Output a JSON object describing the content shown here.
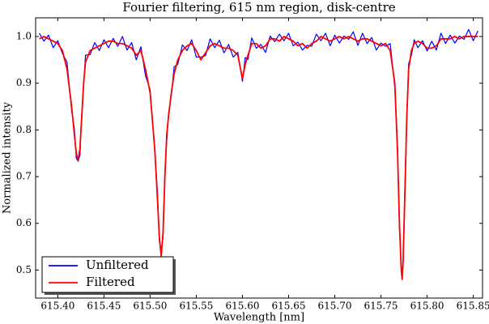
{
  "chart_data": {
    "type": "line",
    "title": "Fourier filtering, 615 nm region, disk-centre",
    "xlabel": "Wavelength [nm]",
    "ylabel": "Normalized intensity",
    "x": [
      615.38,
      615.385,
      615.39,
      615.395,
      615.4,
      615.405,
      615.41,
      615.415,
      615.418,
      615.42,
      615.422,
      615.424,
      615.426,
      615.428,
      615.43,
      615.435,
      615.44,
      615.445,
      615.45,
      615.455,
      615.46,
      615.465,
      615.47,
      615.475,
      615.48,
      615.485,
      615.49,
      615.495,
      615.5,
      615.505,
      615.508,
      615.51,
      615.512,
      615.514,
      615.516,
      615.518,
      615.52,
      615.523,
      615.526,
      615.53,
      615.535,
      615.54,
      615.545,
      615.55,
      615.555,
      615.56,
      615.565,
      615.57,
      615.575,
      615.58,
      615.585,
      615.59,
      615.595,
      615.6,
      615.603,
      615.606,
      615.61,
      615.615,
      615.62,
      615.625,
      615.63,
      615.635,
      615.64,
      615.645,
      615.65,
      615.655,
      615.66,
      615.665,
      615.67,
      615.675,
      615.68,
      615.685,
      615.69,
      615.695,
      615.7,
      615.705,
      615.71,
      615.715,
      615.72,
      615.725,
      615.73,
      615.735,
      615.74,
      615.745,
      615.75,
      615.755,
      615.76,
      615.765,
      615.768,
      615.77,
      615.772,
      615.773,
      615.774,
      615.776,
      615.778,
      615.78,
      615.783,
      615.786,
      615.79,
      615.795,
      615.8,
      615.805,
      615.81,
      615.815,
      615.82,
      615.825,
      615.83,
      615.835,
      615.84,
      615.845,
      615.85,
      615.855
    ],
    "series": [
      {
        "name": "Unfiltered",
        "color": "#0000ff",
        "values": [
          1.007,
          0.99,
          1.003,
          0.976,
          0.991,
          0.964,
          0.945,
          0.841,
          0.802,
          0.74,
          0.733,
          0.746,
          0.836,
          0.894,
          0.96,
          0.961,
          0.987,
          0.97,
          0.993,
          0.976,
          0.996,
          0.979,
          1.0,
          0.971,
          0.987,
          0.95,
          0.978,
          0.916,
          0.886,
          0.754,
          0.665,
          0.561,
          0.542,
          0.57,
          0.708,
          0.776,
          0.836,
          0.874,
          0.935,
          0.941,
          0.982,
          0.97,
          0.993,
          0.956,
          0.956,
          0.959,
          0.995,
          0.976,
          0.992,
          0.965,
          0.983,
          0.956,
          0.966,
          0.904,
          0.955,
          0.951,
          0.997,
          0.975,
          0.983,
          0.966,
          1.001,
          0.989,
          1.005,
          0.991,
          1.007,
          0.98,
          0.988,
          0.971,
          0.981,
          0.979,
          1.005,
          0.991,
          1.007,
          0.98,
          1.003,
          0.986,
          1.001,
          0.994,
          1.01,
          0.981,
          1.007,
          0.985,
          0.998,
          0.971,
          0.986,
          0.979,
          0.985,
          0.891,
          0.762,
          0.59,
          0.508,
          0.486,
          0.514,
          0.685,
          0.821,
          0.942,
          0.96,
          0.993,
          0.976,
          0.991,
          0.969,
          0.99,
          0.971,
          1.007,
          0.985,
          1.003,
          0.986,
          1.001,
          0.994,
          1.015,
          0.991,
          1.012
        ]
      },
      {
        "name": "Filtered",
        "color": "#ff0000",
        "values": [
          0.995,
          1.0,
          0.995,
          0.99,
          0.985,
          0.97,
          0.93,
          0.85,
          0.79,
          0.75,
          0.735,
          0.76,
          0.83,
          0.9,
          0.945,
          0.97,
          0.975,
          0.98,
          0.985,
          0.99,
          0.99,
          0.985,
          0.985,
          0.98,
          0.975,
          0.96,
          0.97,
          0.93,
          0.88,
          0.76,
          0.65,
          0.57,
          0.53,
          0.58,
          0.7,
          0.79,
          0.83,
          0.88,
          0.92,
          0.95,
          0.97,
          0.98,
          0.985,
          0.97,
          0.95,
          0.965,
          0.98,
          0.985,
          0.98,
          0.975,
          0.975,
          0.97,
          0.96,
          0.91,
          0.94,
          0.96,
          0.985,
          0.985,
          0.975,
          0.98,
          0.995,
          0.995,
          0.99,
          1.0,
          0.995,
          0.99,
          0.98,
          0.985,
          0.975,
          0.985,
          0.99,
          1.0,
          0.995,
          0.99,
          0.995,
          1.0,
          0.995,
          1.0,
          0.995,
          0.99,
          0.995,
          0.995,
          0.99,
          0.985,
          0.98,
          0.985,
          0.97,
          0.9,
          0.75,
          0.6,
          0.5,
          0.48,
          0.52,
          0.67,
          0.83,
          0.93,
          0.97,
          0.985,
          0.99,
          0.985,
          0.975,
          0.975,
          0.98,
          0.995,
          0.995,
          0.995,
          1.0,
          0.995,
          1.0,
          1.0,
          1.0,
          1.0
        ]
      }
    ],
    "xlim": [
      615.376,
      615.86
    ],
    "ylim": [
      0.44,
      1.04
    ],
    "xticks": [
      {
        "value": 615.4,
        "label": "615.40"
      },
      615.45,
      {
        "value": 615.5,
        "label": "615.50"
      },
      615.55,
      {
        "value": 615.6,
        "label": "615.60"
      },
      615.65,
      {
        "value": 615.7,
        "label": "615.70"
      },
      615.75,
      {
        "value": 615.8,
        "label": "615.80"
      },
      615.85
    ],
    "yticks": [
      0.5,
      0.6,
      0.7,
      0.8,
      0.9,
      {
        "value": 1,
        "label": "1.0"
      }
    ],
    "legend": "lower left"
  }
}
